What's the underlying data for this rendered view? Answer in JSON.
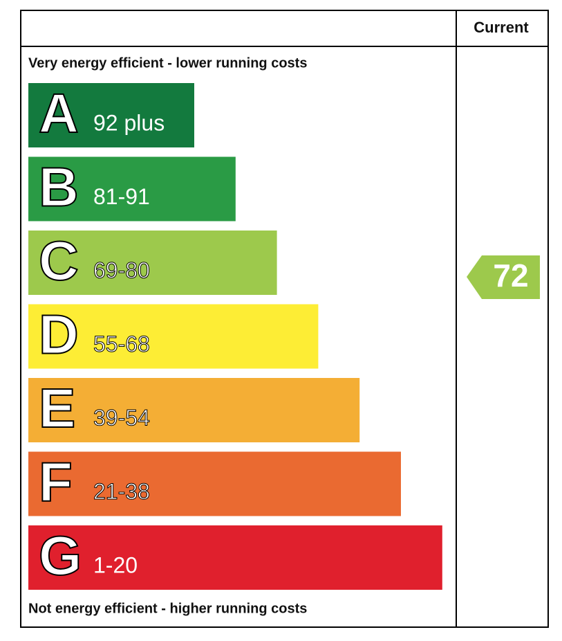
{
  "header": {
    "column": "Current"
  },
  "top_note": "Very energy efficient - lower running costs",
  "bottom_note": "Not energy efficient - higher running costs",
  "bands": [
    {
      "letter": "A",
      "range": "92 plus",
      "color": "#137a3e"
    },
    {
      "letter": "B",
      "range": "81-91",
      "color": "#2a9b45"
    },
    {
      "letter": "C",
      "range": "69-80",
      "color": "#9dc94c"
    },
    {
      "letter": "D",
      "range": "55-68",
      "color": "#fded35"
    },
    {
      "letter": "E",
      "range": "39-54",
      "color": "#f4ae35"
    },
    {
      "letter": "F",
      "range": "21-38",
      "color": "#ea6a31"
    },
    {
      "letter": "G",
      "range": "1-20",
      "color": "#e0202d"
    }
  ],
  "current": {
    "rating": "72",
    "color": "#9dc94c"
  }
}
